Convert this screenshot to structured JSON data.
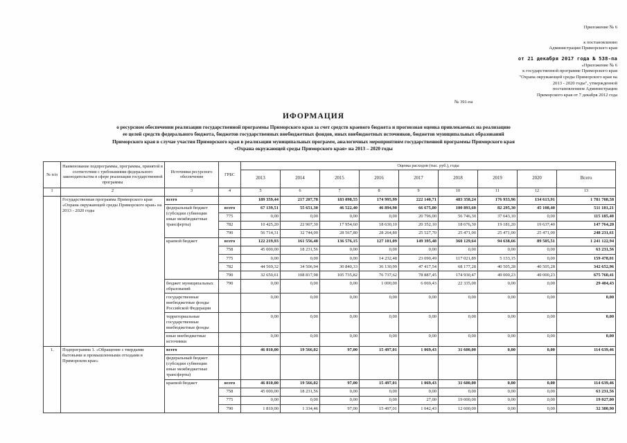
{
  "page": {
    "annex": "Приложение № 6",
    "to_resolution": [
      "к постановлению",
      "Администрации Приморского края"
    ],
    "stamp": "от 21 декабря 2017 года № 538-па",
    "program_ref": [
      "«Приложение № 6",
      "к государственной программе Приморского края",
      "\"Охрана окружающей среды Приморского края на",
      "2013 - 2020 годы\", утвержденной",
      "постановлением Администрации",
      "Приморского края  от 7 декабря 2012 года"
    ],
    "ref_number": "№ 391-па",
    "title": "ИФОРМАЦИЯ",
    "subtitle": [
      "о ресурсном обеспечении реализации государственной программы Приморского края за счет средств краевого бюджета и прогнозная оценка привлекаемых на реализацию",
      "ее целей средств федерального бюджета, бюджетов государственных внебюджетных фондов, иных внебюджетных источников, бюджетов муниципальных образований",
      "Приморского края в случае участия Приморского края в реализации муниципальных программ, аналогичных мероприятиям государственной  программы Приморского края",
      "«Охрана окружающей среды Приморского края»  на 2013 – 2020 годы"
    ]
  },
  "table": {
    "header": {
      "col1": "№ п/п",
      "col2": "Наименование подпрограммы, программы, принятой в соответствии с требованиями федерального законодательства в сфере реализации государственной программы",
      "col3": "Источники ресурсного обеспечения",
      "col4": "ГРБС",
      "spend": "Оценка расходов (тыс. руб.), годы",
      "years": [
        "2013",
        "2014",
        "2015",
        "2016",
        "2017",
        "2018",
        "2019",
        "2020",
        "Всего"
      ],
      "indices": [
        "1",
        "2",
        "3",
        "4",
        "5",
        "6",
        "7",
        "8",
        "9",
        "10",
        "11",
        "12",
        "13"
      ]
    },
    "body": [
      [
        {
          "t": "",
          "c": "idx",
          "rs": 14
        },
        {
          "t": "Государственная программа Приморского края «Охрана окружающей среды Приморского края» на 2013 - 2020 годы",
          "c": "name",
          "rs": 14
        },
        {
          "t": "всего",
          "c": "src",
          "b": 1
        },
        {
          "t": "",
          "c": "grbs"
        },
        {
          "t": "189 359,44",
          "c": "num",
          "b": 1
        },
        {
          "t": "217 207,78",
          "c": "num",
          "b": 1
        },
        {
          "t": "183 098,55",
          "c": "num",
          "b": 1
        },
        {
          "t": "174 995,99",
          "c": "num",
          "b": 1
        },
        {
          "t": "222 140,71",
          "c": "num",
          "b": 1
        },
        {
          "t": "483 358,24",
          "c": "num",
          "b": 1
        },
        {
          "t": "176 933,96",
          "c": "num",
          "b": 1
        },
        {
          "t": "134 613,91",
          "c": "num",
          "b": 1
        },
        {
          "t": "1 781 708,58",
          "c": "num",
          "b": 1
        }
      ],
      [
        {
          "t": "федеральный бюджет (субсидии субвенции иные межбюджетные трансферты)",
          "c": "src",
          "rs": 4
        },
        {
          "t": "всего",
          "c": "grbs",
          "b": 1
        },
        {
          "t": "67 139,51",
          "c": "num",
          "b": 1
        },
        {
          "t": "55 651,30",
          "c": "num",
          "b": 1
        },
        {
          "t": "46 522,40",
          "c": "num",
          "b": 1
        },
        {
          "t": "46 894,90",
          "c": "num",
          "b": 1
        },
        {
          "t": "66 675,80",
          "c": "num",
          "b": 1
        },
        {
          "t": "100 893,60",
          "c": "num",
          "b": 1
        },
        {
          "t": "82 295,30",
          "c": "num",
          "b": 1
        },
        {
          "t": "45 108,40",
          "c": "num",
          "b": 1
        },
        {
          "t": "511 181,21",
          "c": "num",
          "b": 1
        }
      ],
      [
        {
          "t": "775",
          "c": "grbs"
        },
        {
          "t": "0,00",
          "c": "num"
        },
        {
          "t": "0,00",
          "c": "num"
        },
        {
          "t": "0,00",
          "c": "num"
        },
        {
          "t": "0,00",
          "c": "num"
        },
        {
          "t": "20 796,00",
          "c": "num"
        },
        {
          "t": "56 746,30",
          "c": "num"
        },
        {
          "t": "37 643,10",
          "c": "num"
        },
        {
          "t": "0,00",
          "c": "num"
        },
        {
          "t": "115 185,40",
          "c": "num",
          "b": 1
        }
      ],
      [
        {
          "t": "782",
          "c": "grbs"
        },
        {
          "t": "10 425,20",
          "c": "num"
        },
        {
          "t": "22 907,30",
          "c": "num"
        },
        {
          "t": "17 954,60",
          "c": "num"
        },
        {
          "t": "18 630,10",
          "c": "num"
        },
        {
          "t": "20 352,10",
          "c": "num"
        },
        {
          "t": "18 676,30",
          "c": "num"
        },
        {
          "t": "19 181,20",
          "c": "num"
        },
        {
          "t": "19 637,40",
          "c": "num"
        },
        {
          "t": "147 764,20",
          "c": "num",
          "b": 1
        }
      ],
      [
        {
          "t": "790",
          "c": "grbs"
        },
        {
          "t": "56 714,31",
          "c": "num"
        },
        {
          "t": "32 744,00",
          "c": "num"
        },
        {
          "t": "28 567,80",
          "c": "num"
        },
        {
          "t": "28 264,80",
          "c": "num"
        },
        {
          "t": "25 527,70",
          "c": "num"
        },
        {
          "t": "25 471,00",
          "c": "num"
        },
        {
          "t": "25 471,00",
          "c": "num"
        },
        {
          "t": "25 471,00",
          "c": "num"
        },
        {
          "t": "248 231,61",
          "c": "num",
          "b": 1
        }
      ],
      [
        {
          "t": "краевой бюджет",
          "c": "src",
          "rs": 5
        },
        {
          "t": "всего",
          "c": "grbs",
          "b": 1
        },
        {
          "t": "122 219,93",
          "c": "num",
          "b": 1
        },
        {
          "t": "161 556,48",
          "c": "num",
          "b": 1
        },
        {
          "t": "136 576,15",
          "c": "num",
          "b": 1
        },
        {
          "t": "127 101,09",
          "c": "num",
          "b": 1
        },
        {
          "t": "149 395,48",
          "c": "num",
          "b": 1
        },
        {
          "t": "360 129,64",
          "c": "num",
          "b": 1
        },
        {
          "t": "94 638,66",
          "c": "num",
          "b": 1
        },
        {
          "t": "89 505,51",
          "c": "num",
          "b": 1
        },
        {
          "t": "1 241 122,94",
          "c": "num",
          "b": 1
        }
      ],
      [
        {
          "t": "758",
          "c": "grbs"
        },
        {
          "t": "45 000,00",
          "c": "num"
        },
        {
          "t": "18 231,56",
          "c": "num"
        },
        {
          "t": "0,00",
          "c": "num"
        },
        {
          "t": "0,00",
          "c": "num"
        },
        {
          "t": "0,00",
          "c": "num"
        },
        {
          "t": "0,00",
          "c": "num"
        },
        {
          "t": "0,00",
          "c": "num"
        },
        {
          "t": "0,00",
          "c": "num"
        },
        {
          "t": "63 231,56",
          "c": "num",
          "b": 1
        }
      ],
      [
        {
          "t": "775",
          "c": "grbs"
        },
        {
          "t": "0,00",
          "c": "num"
        },
        {
          "t": "0,00",
          "c": "num"
        },
        {
          "t": "0,00",
          "c": "num"
        },
        {
          "t": "14 232,48",
          "c": "num"
        },
        {
          "t": "23 090,49",
          "c": "num"
        },
        {
          "t": "117 021,89",
          "c": "num"
        },
        {
          "t": "5 133,15",
          "c": "num"
        },
        {
          "t": "0,00",
          "c": "num"
        },
        {
          "t": "159 478,01",
          "c": "num",
          "b": 1
        }
      ],
      [
        {
          "t": "782",
          "c": "grbs"
        },
        {
          "t": "44 569,32",
          "c": "num"
        },
        {
          "t": "34 506,94",
          "c": "num"
        },
        {
          "t": "30 840,33",
          "c": "num"
        },
        {
          "t": "36 130,99",
          "c": "num"
        },
        {
          "t": "47 417,54",
          "c": "num"
        },
        {
          "t": "68 177,28",
          "c": "num"
        },
        {
          "t": "40 505,28",
          "c": "num"
        },
        {
          "t": "40 505,28",
          "c": "num"
        },
        {
          "t": "342 652,96",
          "c": "num",
          "b": 1
        }
      ],
      [
        {
          "t": "790",
          "c": "grbs"
        },
        {
          "t": "32 650,61",
          "c": "num"
        },
        {
          "t": "108 817,98",
          "c": "num"
        },
        {
          "t": "105 735,82",
          "c": "num"
        },
        {
          "t": "76 737,62",
          "c": "num"
        },
        {
          "t": "78 887,45",
          "c": "num"
        },
        {
          "t": "174 930,47",
          "c": "num"
        },
        {
          "t": "49 000,23",
          "c": "num"
        },
        {
          "t": "49 000,23",
          "c": "num"
        },
        {
          "t": "675 760,41",
          "c": "num",
          "b": 1
        }
      ],
      [
        {
          "t": "бюджет муниципальных образований",
          "c": "src"
        },
        {
          "t": "790",
          "c": "grbs"
        },
        {
          "t": "0,00",
          "c": "num"
        },
        {
          "t": "0,00",
          "c": "num"
        },
        {
          "t": "0,00",
          "c": "num"
        },
        {
          "t": "1 000,00",
          "c": "num"
        },
        {
          "t": "6 069,43",
          "c": "num"
        },
        {
          "t": "22 335,00",
          "c": "num"
        },
        {
          "t": "0,00",
          "c": "num"
        },
        {
          "t": "0,00",
          "c": "num"
        },
        {
          "t": "29 404,43",
          "c": "num",
          "b": 1
        }
      ],
      [
        {
          "t": "государственные внебюджетные фонды Российской Федерации",
          "c": "src"
        },
        {
          "t": "",
          "c": "grbs"
        },
        {
          "t": "0,00",
          "c": "num"
        },
        {
          "t": "0,00",
          "c": "num"
        },
        {
          "t": "0,00",
          "c": "num"
        },
        {
          "t": "0,00",
          "c": "num"
        },
        {
          "t": "0,00",
          "c": "num"
        },
        {
          "t": "0,00",
          "c": "num"
        },
        {
          "t": "0,00",
          "c": "num"
        },
        {
          "t": "0,00",
          "c": "num"
        },
        {
          "t": "0,00",
          "c": "num",
          "b": 1
        }
      ],
      [
        {
          "t": "территориальные государственные внебюджетные фонды",
          "c": "src"
        },
        {
          "t": "",
          "c": "grbs"
        },
        {
          "t": "0,00",
          "c": "num"
        },
        {
          "t": "0,00",
          "c": "num"
        },
        {
          "t": "0,00",
          "c": "num"
        },
        {
          "t": "0,00",
          "c": "num"
        },
        {
          "t": "0,00",
          "c": "num"
        },
        {
          "t": "0,00",
          "c": "num"
        },
        {
          "t": "0,00",
          "c": "num"
        },
        {
          "t": "0,00",
          "c": "num"
        },
        {
          "t": "0,00",
          "c": "num",
          "b": 1
        }
      ],
      [
        {
          "t": "иные внебюджетные источники",
          "c": "src"
        },
        {
          "t": "",
          "c": "grbs"
        },
        {
          "t": "0,00",
          "c": "num"
        },
        {
          "t": "0,00",
          "c": "num"
        },
        {
          "t": "0,00",
          "c": "num"
        },
        {
          "t": "0,00",
          "c": "num"
        },
        {
          "t": "0,00",
          "c": "num"
        },
        {
          "t": "0,00",
          "c": "num"
        },
        {
          "t": "0,00",
          "c": "num"
        },
        {
          "t": "0,00",
          "c": "num"
        },
        {
          "t": "0,00",
          "c": "num",
          "b": 1
        }
      ],
      [
        {
          "t": "1.",
          "c": "idx",
          "rs": 6
        },
        {
          "t": "Подпрограмма 1. «Обращение с твердыми бытовыми и промышленными отходами в Приморском крае»",
          "c": "name",
          "rs": 6
        },
        {
          "t": "всего",
          "c": "src",
          "b": 1
        },
        {
          "t": "",
          "c": "grbs"
        },
        {
          "t": "46 810,00",
          "c": "num",
          "b": 1
        },
        {
          "t": "19 566,02",
          "c": "num",
          "b": 1
        },
        {
          "t": "97,00",
          "c": "num",
          "b": 1
        },
        {
          "t": "15 497,01",
          "c": "num",
          "b": 1
        },
        {
          "t": "1 069,43",
          "c": "num",
          "b": 1
        },
        {
          "t": "31 600,00",
          "c": "num",
          "b": 1
        },
        {
          "t": "0,00",
          "c": "num",
          "b": 1
        },
        {
          "t": "0,00",
          "c": "num",
          "b": 1
        },
        {
          "t": "114 639,46",
          "c": "num",
          "b": 1
        }
      ],
      [
        {
          "t": "федеральный бюджет (субсидии субвенции иные межбюджетные трансферты)",
          "c": "src"
        },
        {
          "t": "",
          "c": "grbs"
        },
        {
          "t": "",
          "c": "num"
        },
        {
          "t": "",
          "c": "num"
        },
        {
          "t": "",
          "c": "num"
        },
        {
          "t": "",
          "c": "num"
        },
        {
          "t": "",
          "c": "num"
        },
        {
          "t": "",
          "c": "num"
        },
        {
          "t": "",
          "c": "num"
        },
        {
          "t": "",
          "c": "num"
        },
        {
          "t": "",
          "c": "num"
        }
      ],
      [
        {
          "t": "краевой бюджет",
          "c": "src",
          "rs": 4
        },
        {
          "t": "всего",
          "c": "grbs",
          "b": 1
        },
        {
          "t": "46 810,00",
          "c": "num",
          "b": 1
        },
        {
          "t": "19 566,02",
          "c": "num",
          "b": 1
        },
        {
          "t": "97,00",
          "c": "num",
          "b": 1
        },
        {
          "t": "15 497,01",
          "c": "num",
          "b": 1
        },
        {
          "t": "1 069,43",
          "c": "num",
          "b": 1
        },
        {
          "t": "31 600,00",
          "c": "num",
          "b": 1
        },
        {
          "t": "0,00",
          "c": "num",
          "b": 1
        },
        {
          "t": "0,00",
          "c": "num",
          "b": 1
        },
        {
          "t": "114 639,46",
          "c": "num",
          "b": 1
        }
      ],
      [
        {
          "t": "758",
          "c": "grbs"
        },
        {
          "t": "45 000,00",
          "c": "num"
        },
        {
          "t": "18 231,56",
          "c": "num"
        },
        {
          "t": "0,00",
          "c": "num"
        },
        {
          "t": "0,00",
          "c": "num"
        },
        {
          "t": "0,00",
          "c": "num"
        },
        {
          "t": "0,00",
          "c": "num"
        },
        {
          "t": "0,00",
          "c": "num"
        },
        {
          "t": "0,00",
          "c": "num"
        },
        {
          "t": "63 231,56",
          "c": "num",
          "b": 1
        }
      ],
      [
        {
          "t": "775",
          "c": "grbs"
        },
        {
          "t": "0,00",
          "c": "num"
        },
        {
          "t": "0,00",
          "c": "num"
        },
        {
          "t": "0,00",
          "c": "num"
        },
        {
          "t": "0,00",
          "c": "num"
        },
        {
          "t": "27,00",
          "c": "num"
        },
        {
          "t": "19 000,00",
          "c": "num"
        },
        {
          "t": "0,00",
          "c": "num"
        },
        {
          "t": "0,00",
          "c": "num"
        },
        {
          "t": "19 027,00",
          "c": "num",
          "b": 1
        }
      ],
      [
        {
          "t": "790",
          "c": "grbs"
        },
        {
          "t": "1 810,00",
          "c": "num"
        },
        {
          "t": "1 334,46",
          "c": "num"
        },
        {
          "t": "97,00",
          "c": "num"
        },
        {
          "t": "15 497,01",
          "c": "num"
        },
        {
          "t": "1 042,43",
          "c": "num"
        },
        {
          "t": "12 600,00",
          "c": "num"
        },
        {
          "t": "0,00",
          "c": "num"
        },
        {
          "t": "0,00",
          "c": "num"
        },
        {
          "t": "32 380,90",
          "c": "num",
          "b": 1
        }
      ]
    ]
  }
}
